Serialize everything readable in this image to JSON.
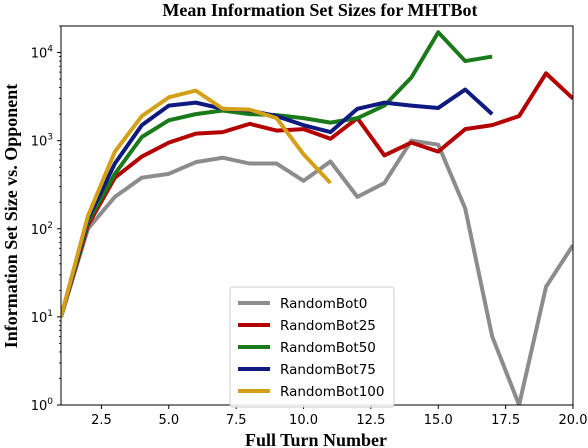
{
  "chart_data": {
    "type": "line",
    "title": "Mean Information Set Sizes for MHTBot",
    "xlabel": "Full Turn Number",
    "ylabel": "Information Set Size vs. Opponent",
    "xlim": [
      1,
      20
    ],
    "ylim": [
      1,
      20000
    ],
    "yscale": "log",
    "grid": false,
    "legend_position": "bottom-center",
    "xticks": [
      {
        "value": 2.5,
        "label": "2.5"
      },
      {
        "value": 5.0,
        "label": "5.0"
      },
      {
        "value": 7.5,
        "label": "7.5"
      },
      {
        "value": 10.0,
        "label": "10.0"
      },
      {
        "value": 12.5,
        "label": "12.5"
      },
      {
        "value": 15.0,
        "label": "15.0"
      },
      {
        "value": 17.5,
        "label": "17.5"
      },
      {
        "value": 20.0,
        "label": "20.0"
      }
    ],
    "yticks": [
      {
        "value": 1,
        "base": "10",
        "exp": "0"
      },
      {
        "value": 10,
        "base": "10",
        "exp": "1"
      },
      {
        "value": 100,
        "base": "10",
        "exp": "2"
      },
      {
        "value": 1000,
        "base": "10",
        "exp": "3"
      },
      {
        "value": 10000,
        "base": "10",
        "exp": "4"
      }
    ],
    "series": [
      {
        "name": "RandomBot0",
        "color": "#8c8c8c",
        "x": [
          1,
          2,
          3,
          4,
          5,
          6,
          7,
          8,
          9,
          10,
          11,
          12,
          13,
          14,
          15,
          16,
          17,
          18,
          19,
          20
        ],
        "y": [
          10,
          100,
          230,
          380,
          420,
          570,
          640,
          550,
          550,
          350,
          580,
          230,
          330,
          1000,
          900,
          170,
          6,
          1,
          22,
          65
        ]
      },
      {
        "name": "RandomBot25",
        "color": "#b30000",
        "x": [
          1,
          2,
          3,
          4,
          5,
          6,
          7,
          8,
          9,
          10,
          11,
          12,
          13,
          14,
          15,
          16,
          17,
          18,
          19,
          20
        ],
        "y": [
          10,
          110,
          380,
          660,
          950,
          1200,
          1250,
          1550,
          1300,
          1350,
          1050,
          1800,
          680,
          950,
          750,
          1350,
          1500,
          1900,
          5800,
          3000
        ]
      },
      {
        "name": "RandomBot50",
        "color": "#1a7a1a",
        "x": [
          1,
          2,
          3,
          4,
          5,
          6,
          7,
          8,
          9,
          10,
          11,
          12,
          13,
          14,
          15,
          16,
          17
        ],
        "y": [
          10,
          120,
          420,
          1100,
          1700,
          2000,
          2200,
          2000,
          1950,
          1800,
          1600,
          1800,
          2500,
          5200,
          17000,
          8000,
          9000
        ]
      },
      {
        "name": "RandomBot75",
        "color": "#0f1a80",
        "x": [
          1,
          2,
          3,
          4,
          5,
          6,
          7,
          8,
          9,
          10,
          11,
          12,
          13,
          14,
          15,
          16,
          17
        ],
        "y": [
          10,
          130,
          550,
          1500,
          2500,
          2700,
          2300,
          2200,
          1900,
          1500,
          1250,
          2300,
          2700,
          2500,
          2350,
          3800,
          2000
        ]
      },
      {
        "name": "RandomBot100",
        "color": "#d4a017",
        "x": [
          1,
          2,
          3,
          4,
          5,
          6,
          7,
          8,
          9,
          10,
          11
        ],
        "y": [
          10,
          140,
          750,
          1900,
          3100,
          3700,
          2300,
          2250,
          1800,
          700,
          330
        ]
      }
    ]
  }
}
